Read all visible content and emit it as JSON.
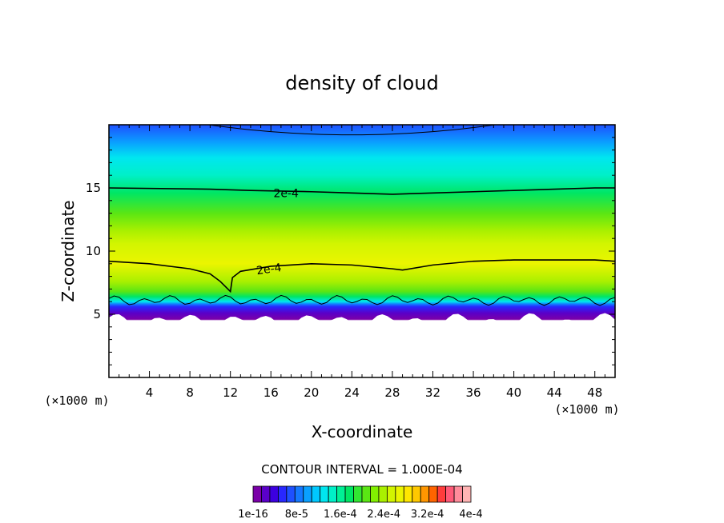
{
  "chart_data": {
    "type": "heatmap",
    "title": "density of cloud",
    "xlabel": "X-coordinate",
    "ylabel": "Z-coordinate",
    "x_unit": "(×1000 m)",
    "z_unit": "(×1000 m)",
    "xlim": [
      0,
      50
    ],
    "ylim": [
      0,
      20
    ],
    "x_ticks": [
      "4",
      "8",
      "12",
      "16",
      "20",
      "24",
      "28",
      "32",
      "36",
      "40",
      "44",
      "48"
    ],
    "y_ticks": [
      "5",
      "10",
      "15"
    ],
    "contour_interval_text": "CONTOUR INTERVAL = 1.000E-04",
    "contour_labels": [
      "2e-4",
      "2e-4"
    ],
    "colorbar": {
      "tick_labels": [
        "1e-16",
        "8e-5",
        "1.6e-4",
        "2.4e-4",
        "3.2e-4",
        "4e-4"
      ],
      "colors": [
        "#7a00a8",
        "#5a00c8",
        "#3c00e0",
        "#2828ff",
        "#1e50ff",
        "#1478ff",
        "#0aa0ff",
        "#00c8ff",
        "#00e6f0",
        "#00f0c8",
        "#00f096",
        "#00e664",
        "#32e632",
        "#5ae614",
        "#82f000",
        "#aaf000",
        "#d2f500",
        "#ebf500",
        "#ffe600",
        "#ffc800",
        "#ff9600",
        "#ff6400",
        "#ff3c3c",
        "#ff5a78",
        "#ff8c9b",
        "#ffb4b4"
      ]
    },
    "field": {
      "cloud_base_z": 5,
      "low_color_at_base": "#7a00a8",
      "max_density_z": 11.5
    },
    "contours_2e4": [
      {
        "x": [
          0,
          10,
          14,
          20,
          24,
          28,
          32,
          36,
          40,
          44,
          48,
          50
        ],
        "z": [
          15,
          14.9,
          14.8,
          14.7,
          14.6,
          14.5,
          14.6,
          14.7,
          14.8,
          14.9,
          15,
          15
        ]
      },
      {
        "x": [
          0,
          4,
          8,
          10,
          11,
          12,
          12.2,
          13,
          16,
          20,
          24,
          28,
          29,
          32,
          36,
          40,
          44,
          48,
          50
        ],
        "z": [
          9.2,
          9,
          8.6,
          8.2,
          7.6,
          6.8,
          7.9,
          8.4,
          8.8,
          9,
          8.9,
          8.6,
          8.5,
          8.9,
          9.2,
          9.3,
          9.3,
          9.3,
          9.2
        ]
      }
    ]
  }
}
